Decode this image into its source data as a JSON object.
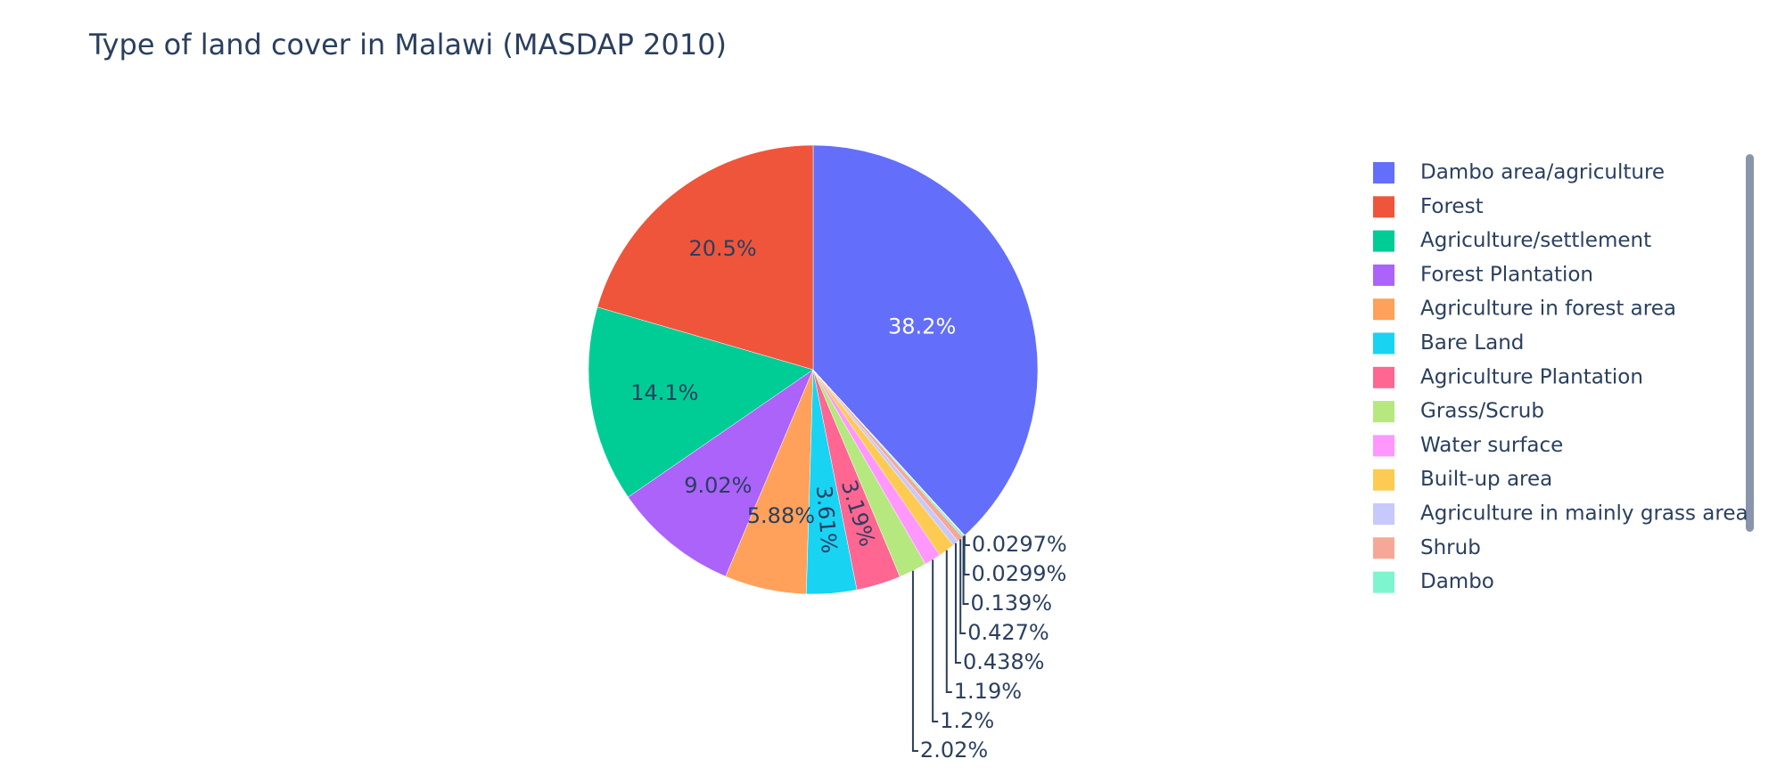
{
  "chart_data": {
    "type": "pie",
    "title": "Type of land cover in Malawi (MASDAP 2010)",
    "categories": [
      "Dambo area/agriculture",
      "Forest",
      "Agriculture/settlement",
      "Forest Plantation",
      "Agriculture in forest area",
      "Bare Land",
      "Agriculture Plantation",
      "Grass/Scrub",
      "Water surface",
      "Built-up area",
      "Agriculture in mainly grass area",
      "Shrub",
      "Dambo",
      null,
      null
    ],
    "values": [
      38.2,
      20.5,
      14.1,
      9.02,
      5.88,
      3.61,
      3.19,
      2.02,
      1.2,
      1.19,
      0.438,
      0.427,
      0.139,
      0.0299,
      0.0297
    ],
    "value_labels": [
      "38.2%",
      "20.5%",
      "14.1%",
      "9.02%",
      "5.88%",
      "3.61%",
      "3.19%",
      "2.02%",
      "1.2%",
      "1.19%",
      "0.438%",
      "0.427%",
      "0.139%",
      "0.0299%",
      "0.0297%"
    ],
    "colors": [
      "#636efa",
      "#ef553b",
      "#00cc96",
      "#ab63fa",
      "#ffa15a",
      "#19d3f3",
      "#ff6692",
      "#b6e880",
      "#ff97ff",
      "#fecb52",
      "#c6c9fb",
      "#f6a898",
      "#7ff5cf",
      "#d4b0fc",
      "#ffcfa8"
    ],
    "legend": "right"
  }
}
